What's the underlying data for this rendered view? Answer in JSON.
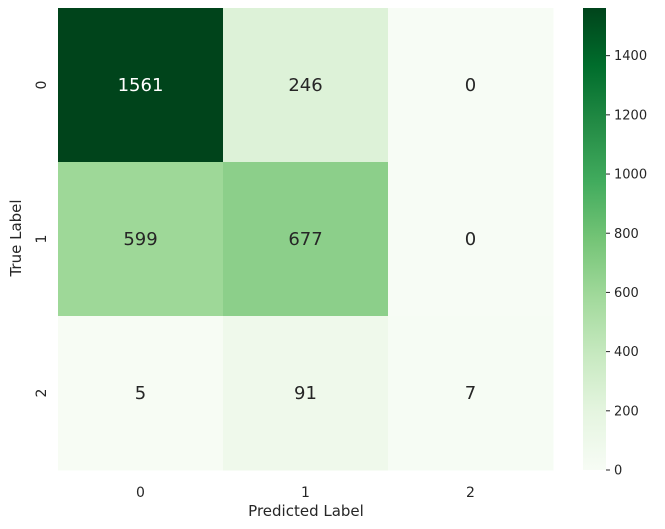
{
  "chart_data": {
    "type": "heatmap",
    "title": "",
    "xlabel": "Predicted Label",
    "ylabel": "True Label",
    "x_categories": [
      "0",
      "1",
      "2"
    ],
    "y_categories": [
      "0",
      "1",
      "2"
    ],
    "values": [
      [
        1561,
        246,
        0
      ],
      [
        599,
        677,
        0
      ],
      [
        5,
        91,
        7
      ]
    ],
    "cell_labels": [
      [
        "1561",
        "246",
        "0"
      ],
      [
        "599",
        "677",
        "0"
      ],
      [
        "5",
        "91",
        "7"
      ]
    ],
    "colormap": "Greens",
    "colorbar": {
      "vmin": 0,
      "vmax": 1561,
      "ticks": [
        0,
        200,
        400,
        600,
        800,
        1000,
        1200,
        1400
      ],
      "tick_labels": [
        "0",
        "200",
        "400",
        "600",
        "800",
        "1000",
        "1200",
        "1400"
      ]
    }
  }
}
